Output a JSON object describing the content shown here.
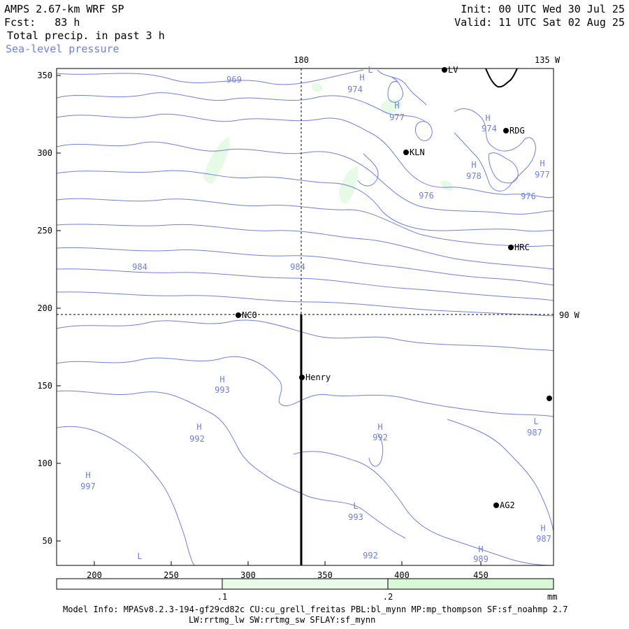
{
  "header": {
    "model": "AMPS 2.67-km WRF SP",
    "fcst": "Fcst:   83 h",
    "field": "Total precip. in past 3 h",
    "overlay": "Sea-level pressure",
    "init": "Init: 00 UTC Wed 30 Jul 25",
    "valid": "Valid: 11 UTC Sat 02 Aug 25"
  },
  "axes": {
    "x_ticks": [
      "200",
      "250",
      "300",
      "350",
      "400",
      "450"
    ],
    "y_ticks": [
      "350",
      "300",
      "250",
      "200",
      "150",
      "100",
      "50"
    ],
    "lon_top_180": "180",
    "lon_top_135w": "135 W",
    "lat_right_90w": "90 W"
  },
  "stations": [
    {
      "id": "NCO",
      "label": "NCO"
    },
    {
      "id": "KLN",
      "label": "KLN"
    },
    {
      "id": "RDG",
      "label": "RDG"
    },
    {
      "id": "HRC",
      "label": "HRC"
    },
    {
      "id": "Henry",
      "label": "Henry"
    },
    {
      "id": "AG2",
      "label": "AG2"
    },
    {
      "id": "LV",
      "label": "LV"
    }
  ],
  "pressure_labels": [
    {
      "t": "969"
    },
    {
      "t": "974"
    },
    {
      "t": "977"
    },
    {
      "t": "974"
    },
    {
      "t": "978"
    },
    {
      "t": "977"
    },
    {
      "t": "976"
    },
    {
      "t": "976"
    },
    {
      "t": "984"
    },
    {
      "t": "984"
    },
    {
      "t": "993"
    },
    {
      "t": "992"
    },
    {
      "t": "992"
    },
    {
      "t": "987"
    },
    {
      "t": "997"
    },
    {
      "t": "993"
    },
    {
      "t": "992"
    },
    {
      "t": "989"
    },
    {
      "t": "987"
    }
  ],
  "centers": [
    {
      "t": "H"
    },
    {
      "t": "H"
    },
    {
      "t": "H"
    },
    {
      "t": "H"
    },
    {
      "t": "H"
    },
    {
      "t": "H"
    },
    {
      "t": "H"
    },
    {
      "t": "H"
    },
    {
      "t": "L"
    },
    {
      "t": "H"
    },
    {
      "t": "L"
    },
    {
      "t": "H"
    },
    {
      "t": "H"
    },
    {
      "t": "L"
    },
    {
      "t": "L"
    }
  ],
  "colorbar": {
    "ticks": [
      ".1",
      ".2"
    ],
    "units": "mm",
    "colors": [
      "#ffffff",
      "#e8fbe8",
      "#d8f8d8"
    ]
  },
  "colors": {
    "isobar": "#6f7fe0",
    "precip": "#e6fae6"
  },
  "footer": {
    "line1": "Model Info: MPASv8.2.3-194-gf29cd82c CU:cu_grell_freitas PBL:bl_mynn MP:mp_thompson SF:sf_noahmp 2.7",
    "line2": "LW:rrtmg_lw SW:rrtmg_sw SFLAY:sf_mynn"
  }
}
